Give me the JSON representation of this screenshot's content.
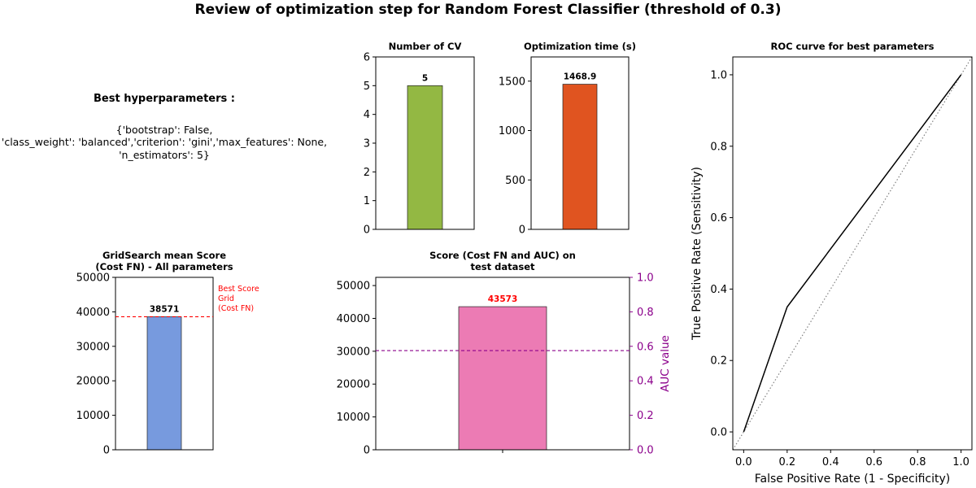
{
  "figure": {
    "title": "Review of optimization step for Random Forest Classifier (threshold of 0.3)"
  },
  "best_params": {
    "heading": "Best hyperparameters :",
    "lines": [
      "{'bootstrap': False,",
      "'class_weight': 'balanced','criterion': 'gini','max_features': None,",
      "'n_estimators': 5}"
    ]
  },
  "chart_data": [
    {
      "id": "cv",
      "type": "bar",
      "title": "Number of CV",
      "values": [
        5
      ],
      "value_labels": [
        "5"
      ],
      "ylim": [
        0,
        6
      ],
      "yticks": [
        0,
        1,
        2,
        3,
        4,
        5,
        6
      ],
      "color": "#93b843"
    },
    {
      "id": "time",
      "type": "bar",
      "title": "Optimization time (s)",
      "values": [
        1468.9
      ],
      "value_labels": [
        "1468.9"
      ],
      "ylim": [
        0,
        1745
      ],
      "yticks": [
        0,
        500,
        1000,
        1500
      ],
      "color": "#e05420"
    },
    {
      "id": "grid",
      "type": "bar",
      "title": "GridSearch mean Score (Cost FN) - All parameters",
      "title_lines": [
        "GridSearch mean Score",
        "(Cost FN) - All parameters"
      ],
      "values": [
        38571
      ],
      "value_labels": [
        "38571"
      ],
      "ylim": [
        0,
        50000
      ],
      "yticks": [
        0,
        10000,
        20000,
        30000,
        40000,
        50000
      ],
      "color": "#779ade",
      "hline": {
        "value": 38571,
        "color": "#ff0000",
        "label_lines": [
          "Best Score",
          "Grid",
          "(Cost FN)"
        ]
      }
    },
    {
      "id": "score",
      "type": "bar",
      "title": "Score (Cost FN and AUC) on test dataset",
      "title_lines": [
        "Score (Cost FN and AUC) on",
        "test dataset"
      ],
      "values": [
        43573
      ],
      "value_labels": [
        "43573"
      ],
      "value_label_color": "#ff0000",
      "ylim": [
        0,
        52500
      ],
      "yticks": [
        0,
        10000,
        20000,
        30000,
        40000,
        50000
      ],
      "color": "#ec7bb4",
      "secondary_axis": {
        "ylabel": "AUC value",
        "ylim": [
          0,
          1
        ],
        "yticks": [
          "0.0",
          "0.2",
          "0.4",
          "0.6",
          "0.8",
          "1.0"
        ],
        "color": "#8b008b",
        "auc": 0.575
      }
    },
    {
      "id": "roc",
      "type": "line",
      "title": "ROC curve for best parameters",
      "xlabel": "False Positive Rate (1 - Specificity)",
      "ylabel": "True Positive Rate (Sensitivity)",
      "xlim": [
        -0.05,
        1.05
      ],
      "ylim": [
        -0.05,
        1.05
      ],
      "xticks": [
        "0.0",
        "0.2",
        "0.4",
        "0.6",
        "0.8",
        "1.0"
      ],
      "yticks": [
        "0.0",
        "0.2",
        "0.4",
        "0.6",
        "0.8",
        "1.0"
      ],
      "series": [
        {
          "x": [
            0,
            0.2,
            1
          ],
          "y": [
            0,
            0.35,
            1
          ],
          "color": "#000000"
        }
      ],
      "diagonal": {
        "x": [
          -0.05,
          1.05
        ],
        "y": [
          -0.05,
          1.05
        ],
        "color": "#808080",
        "style": "dotted"
      }
    }
  ]
}
